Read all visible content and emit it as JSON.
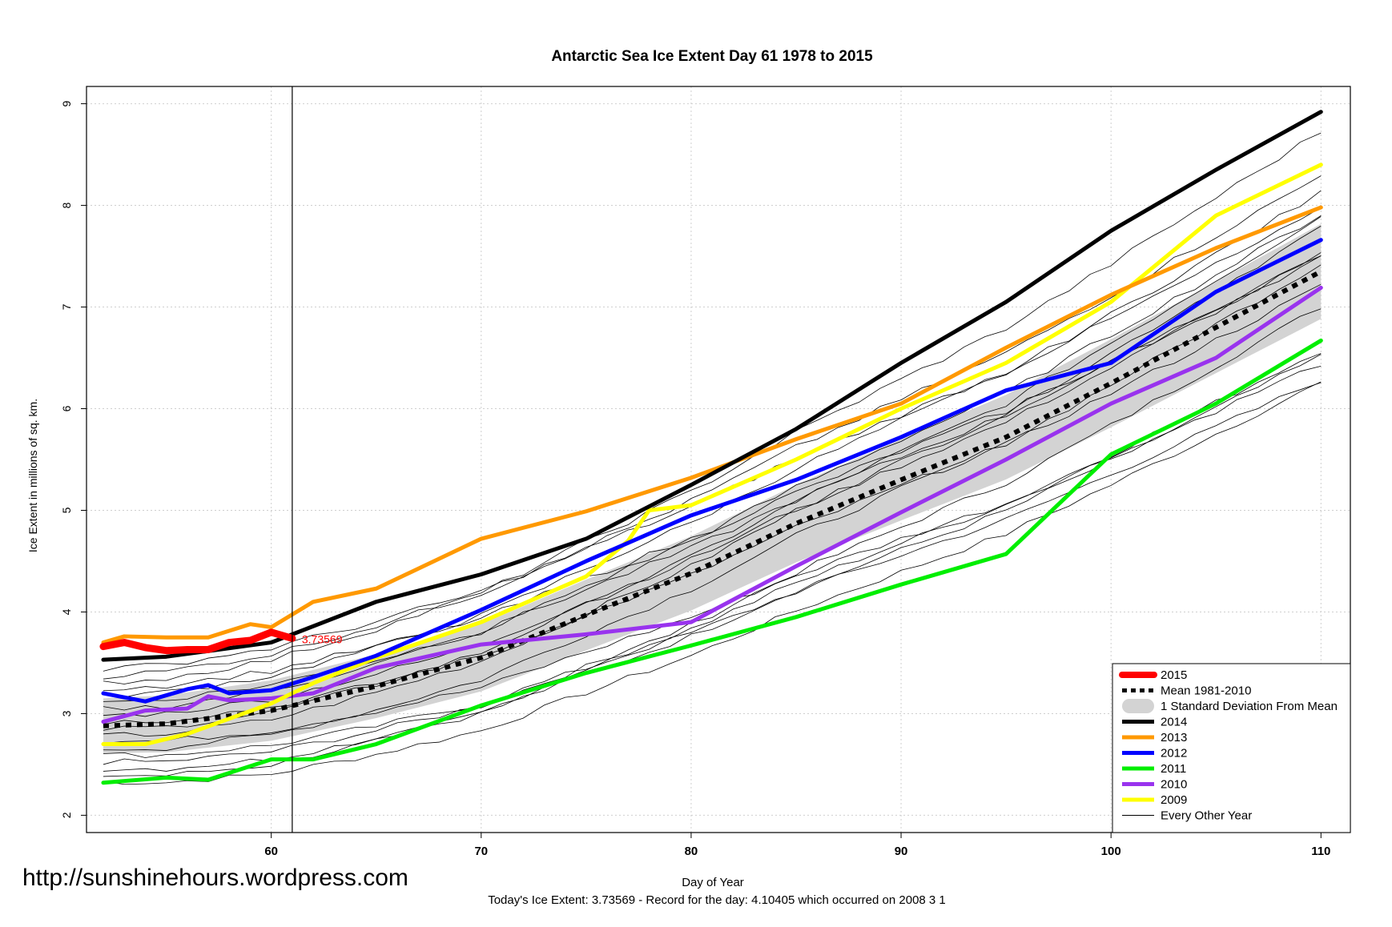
{
  "chart_data": {
    "type": "line",
    "title": "Antarctic Sea Ice Extent Day 61 1978 to 2015",
    "xlabel": "Day of Year",
    "ylabel": "Ice Extent in millions of sq. km.",
    "xlim": [
      52,
      110
    ],
    "ylim": [
      2,
      9
    ],
    "x_ticks": [
      60,
      70,
      80,
      90,
      100,
      110
    ],
    "y_ticks": [
      2,
      3,
      4,
      5,
      6,
      7,
      8,
      9
    ],
    "grid": true,
    "vertical_marker_day": 61,
    "current_value_label": "3.73569",
    "legend_position": "bottom-right",
    "legend": [
      {
        "label": "2015",
        "color": "#ff0000",
        "style": "thick"
      },
      {
        "label": "Mean 1981-2010",
        "color": "#000000",
        "style": "dashed"
      },
      {
        "label": "1 Standard Deviation From Mean",
        "color": "#d3d3d3",
        "style": "band"
      },
      {
        "label": "2014",
        "color": "#000000",
        "style": "thick"
      },
      {
        "label": "2013",
        "color": "#ff9900",
        "style": "thick"
      },
      {
        "label": "2012",
        "color": "#0000ff",
        "style": "thick"
      },
      {
        "label": "2011",
        "color": "#00ee00",
        "style": "thick"
      },
      {
        "label": "2010",
        "color": "#9933ee",
        "style": "thick"
      },
      {
        "label": "2009",
        "color": "#ffff00",
        "style": "thick"
      },
      {
        "label": "Every Other Year",
        "color": "#000000",
        "style": "thin"
      }
    ],
    "series": [
      {
        "name": "2015",
        "color": "#ff0000",
        "x": [
          52,
          53,
          54,
          55,
          56,
          57,
          58,
          59,
          60,
          61
        ],
        "values": [
          3.66,
          3.7,
          3.65,
          3.62,
          3.63,
          3.63,
          3.7,
          3.72,
          3.8,
          3.74
        ]
      },
      {
        "name": "Mean 1981-2010",
        "color": "#000000",
        "x": [
          52,
          55,
          60,
          65,
          70,
          75,
          80,
          85,
          90,
          95,
          100,
          105,
          110
        ],
        "values": [
          2.88,
          2.9,
          3.03,
          3.27,
          3.55,
          3.97,
          4.38,
          4.87,
          5.3,
          5.72,
          6.25,
          6.8,
          7.35
        ]
      },
      {
        "name": "2014",
        "color": "#000000",
        "x": [
          52,
          55,
          60,
          65,
          70,
          75,
          80,
          85,
          90,
          95,
          100,
          105,
          110
        ],
        "values": [
          3.53,
          3.56,
          3.7,
          4.1,
          4.37,
          4.72,
          5.25,
          5.8,
          6.45,
          7.05,
          7.75,
          8.35,
          8.92
        ]
      },
      {
        "name": "2013",
        "color": "#ff9900",
        "x": [
          52,
          53,
          55,
          57,
          59,
          60,
          62,
          65,
          70,
          75,
          80,
          85,
          90,
          95,
          100,
          105,
          110
        ],
        "values": [
          3.7,
          3.76,
          3.75,
          3.75,
          3.88,
          3.85,
          4.1,
          4.23,
          4.72,
          4.99,
          5.32,
          5.7,
          6.05,
          6.6,
          7.12,
          7.58,
          7.98
        ]
      },
      {
        "name": "2012",
        "color": "#0000ff",
        "x": [
          52,
          54,
          56,
          57,
          58,
          60,
          62,
          65,
          70,
          75,
          80,
          85,
          90,
          95,
          100,
          105,
          110
        ],
        "values": [
          3.2,
          3.12,
          3.24,
          3.28,
          3.2,
          3.23,
          3.36,
          3.57,
          4.02,
          4.5,
          4.95,
          5.3,
          5.72,
          6.18,
          6.45,
          7.15,
          7.66
        ]
      },
      {
        "name": "2011",
        "color": "#00ee00",
        "x": [
          52,
          55,
          57,
          60,
          62,
          65,
          70,
          75,
          80,
          85,
          90,
          95,
          100,
          105,
          110
        ],
        "values": [
          2.32,
          2.37,
          2.35,
          2.55,
          2.55,
          2.7,
          3.08,
          3.4,
          3.67,
          3.95,
          4.27,
          4.57,
          5.55,
          6.05,
          6.67
        ]
      },
      {
        "name": "2010",
        "color": "#9933ee",
        "x": [
          52,
          54,
          56,
          57,
          58,
          60,
          62,
          65,
          70,
          75,
          80,
          85,
          90,
          95,
          100,
          105,
          110
        ],
        "values": [
          2.92,
          3.03,
          3.05,
          3.17,
          3.13,
          3.15,
          3.2,
          3.45,
          3.68,
          3.78,
          3.9,
          4.45,
          4.98,
          5.5,
          6.05,
          6.5,
          7.19
        ]
      },
      {
        "name": "2009",
        "color": "#ffff00",
        "x": [
          52,
          54,
          56,
          58,
          60,
          62,
          65,
          70,
          75,
          77,
          78,
          80,
          85,
          90,
          95,
          100,
          105,
          110
        ],
        "values": [
          2.7,
          2.7,
          2.8,
          2.95,
          3.1,
          3.3,
          3.55,
          3.9,
          4.35,
          4.7,
          5.0,
          5.05,
          5.5,
          6.0,
          6.45,
          7.05,
          7.9,
          8.4
        ]
      }
    ]
  },
  "footer": {
    "url": "http://sunshinehours.wordpress.com",
    "note": "Today's Ice Extent: 3.73569  - Record for the day: 4.10405 which occurred on 2008 3 1"
  }
}
